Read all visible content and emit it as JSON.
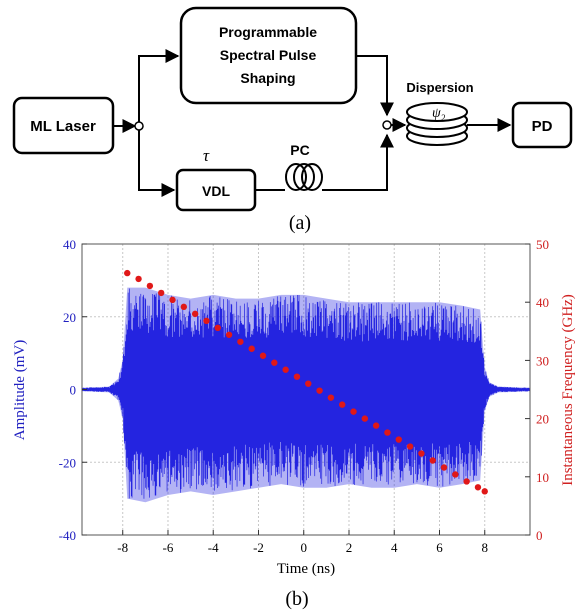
{
  "diagram": {
    "blocks": {
      "laser": "ML Laser",
      "shaper_l1": "Programmable",
      "shaper_l2": "Spectral Pulse",
      "shaper_l3": "Shaping",
      "vdl": "VDL",
      "tau": "τ",
      "pc": "PC",
      "dispersion": "Dispersion",
      "psi": "ψ",
      "psi_sub": "2",
      "pd": "PD"
    },
    "caption": "(a)"
  },
  "chart_data": {
    "type": "line",
    "caption": "(b)",
    "xlabel": "Time (ns)",
    "ylabel_left": "Amplitude (mV)",
    "ylabel_right": "Instantaneous Frequency (GHz)",
    "xlim": [
      -9.8,
      10
    ],
    "ylim_left": [
      -40,
      40
    ],
    "ylim_right": [
      0,
      50
    ],
    "xticks": [
      -8,
      -6,
      -4,
      -2,
      0,
      2,
      4,
      6,
      8
    ],
    "yticks_left": [
      -40,
      -20,
      0,
      20,
      40
    ],
    "yticks_right": [
      0,
      10,
      20,
      30,
      40,
      50
    ],
    "grid": true,
    "colors": {
      "amplitude": "#2424e0",
      "frequency": "#e01818",
      "left_axis": "#2020c0",
      "right_axis": "#d02020"
    },
    "series": [
      {
        "axis": "left",
        "kind": "waveform-envelope",
        "x": [
          -9.8,
          -8.6,
          -8.2,
          -8.0,
          -7.8,
          -7.0,
          -6.0,
          -5.0,
          -4.0,
          -3.0,
          -2.0,
          -1.0,
          0,
          1.0,
          2.0,
          3.0,
          4.0,
          5.0,
          6.0,
          7.0,
          7.8,
          8.0,
          8.2,
          8.6,
          10
        ],
        "upper": [
          0.5,
          0.8,
          3,
          8,
          28,
          28,
          26,
          25,
          26,
          25,
          25,
          26,
          26,
          25,
          24,
          24,
          24,
          24,
          24,
          23,
          22,
          6,
          2,
          0.8,
          0.5
        ],
        "lower": [
          -0.5,
          -0.8,
          -3,
          -8,
          -30,
          -31,
          -29,
          -28,
          -29,
          -28,
          -27,
          -26,
          -27,
          -27,
          -26,
          -27,
          -27,
          -26,
          -27,
          -26,
          -25,
          -6,
          -2,
          -0.8,
          -0.5
        ]
      },
      {
        "axis": "right",
        "kind": "points",
        "x": [
          -7.8,
          -7.3,
          -6.8,
          -6.3,
          -5.8,
          -5.3,
          -4.8,
          -4.3,
          -3.8,
          -3.3,
          -2.8,
          -2.3,
          -1.8,
          -1.3,
          -0.8,
          -0.3,
          0.2,
          0.7,
          1.2,
          1.7,
          2.2,
          2.7,
          3.2,
          3.7,
          4.2,
          4.7,
          5.2,
          5.7,
          6.2,
          6.7,
          7.2,
          7.7,
          8.0
        ],
        "y": [
          45,
          44,
          42.8,
          41.6,
          40.4,
          39.2,
          38,
          36.8,
          35.6,
          34.4,
          33.2,
          32,
          30.8,
          29.6,
          28.4,
          27.2,
          26,
          24.8,
          23.6,
          22.4,
          21.2,
          20,
          18.8,
          17.6,
          16.4,
          15.2,
          14,
          12.8,
          11.6,
          10.4,
          9.2,
          8.2,
          7.5
        ]
      }
    ]
  }
}
